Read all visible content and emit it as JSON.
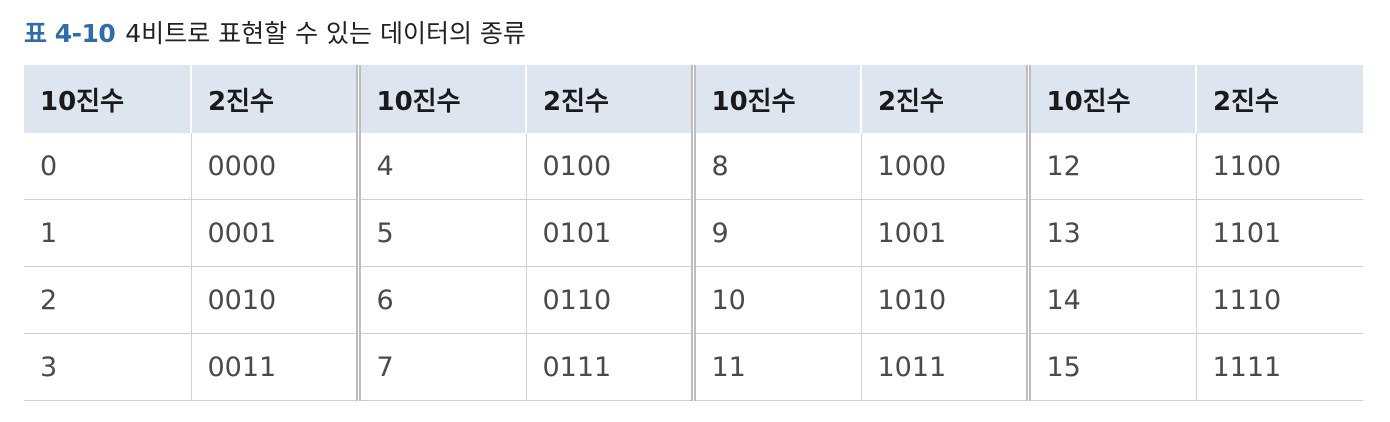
{
  "caption": {
    "label": "표 4-10",
    "title": "4비트로 표현할 수 있는 데이터의 종류"
  },
  "table": {
    "headers": [
      "10진수",
      "2진수",
      "10진수",
      "2진수",
      "10진수",
      "2진수",
      "10진수",
      "2진수"
    ],
    "rows": [
      [
        "0",
        "0000",
        "4",
        "0100",
        "8",
        "1000",
        "12",
        "1100"
      ],
      [
        "1",
        "0001",
        "5",
        "0101",
        "9",
        "1001",
        "13",
        "1101"
      ],
      [
        "2",
        "0010",
        "6",
        "0110",
        "10",
        "1010",
        "14",
        "1110"
      ],
      [
        "3",
        "0011",
        "7",
        "0111",
        "11",
        "1011",
        "15",
        "1111"
      ]
    ]
  },
  "colors": {
    "caption_label": "#2f6da8",
    "header_background": "#dde5f0"
  }
}
